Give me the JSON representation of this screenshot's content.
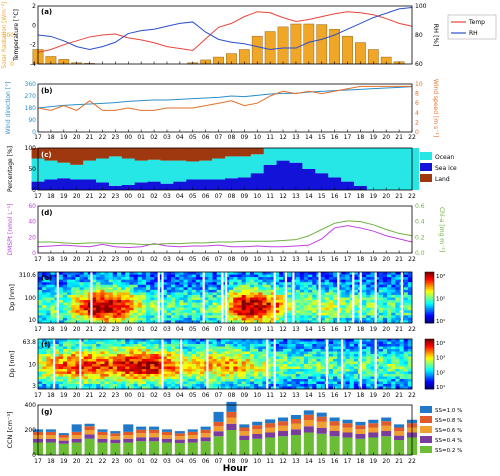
{
  "figure": {
    "x_axis_label": "Hour",
    "hour_ticks": [
      "17",
      "18",
      "19",
      "20",
      "21",
      "22",
      "23",
      "00",
      "01",
      "02",
      "03",
      "04",
      "05",
      "06",
      "07",
      "08",
      "09",
      "10",
      "11",
      "12",
      "13",
      "14",
      "15",
      "16",
      "17",
      "18",
      "19",
      "20",
      "21",
      "22"
    ]
  },
  "colors": {
    "temp": "#e8443a",
    "rh": "#2b4fc8",
    "solar": "#f0a626",
    "wdir": "#2c8fc9",
    "wspd": "#e2702c",
    "ocean": "#26e6e6",
    "seaice": "#1212d8",
    "land": "#a0380f",
    "dmspi": "#c040e0",
    "chla": "#70b040",
    "ccn": [
      "#6bbd35",
      "#7a3d9e",
      "#f0a030",
      "#e05a2a",
      "#1f78c8"
    ]
  },
  "chart_data": [
    {
      "id": "a",
      "panel_label": "(a)",
      "type": "bar+line",
      "ylabel_left": "Temperature [°C]",
      "ylabel_outer": "Solar Radiation [Wm⁻²]",
      "ylabel_right": "RH [%]",
      "ylim_left": [
        -4,
        2
      ],
      "ylim_right": [
        60,
        100
      ],
      "yticks_left": [
        "-4",
        "-2",
        "0",
        "2"
      ],
      "yticks_right": [
        "60",
        "80",
        "100"
      ],
      "solar_ticks": [
        "0",
        "500"
      ],
      "legend": [
        "Temp",
        "RH"
      ],
      "solar_values": [
        250,
        130,
        80,
        20,
        10,
        0,
        0,
        0,
        0,
        0,
        0,
        0,
        20,
        70,
        120,
        180,
        250,
        480,
        560,
        640,
        690,
        690,
        680,
        600,
        480,
        370,
        250,
        120,
        40,
        0
      ],
      "temp_values": [
        -2.8,
        -2.5,
        -2.0,
        -1.6,
        -1.2,
        -1.0,
        -0.9,
        -1.3,
        -1.5,
        -1.8,
        -2.2,
        -2.4,
        -2.6,
        -1.4,
        -0.2,
        0.2,
        0.9,
        1.4,
        1.3,
        0.8,
        0.4,
        0.6,
        0.9,
        1.2,
        1.4,
        1.3,
        1.1,
        0.7,
        0.2,
        -0.1
      ],
      "rh_values": [
        80,
        79,
        76,
        72,
        70,
        72,
        75,
        81,
        83,
        84,
        86,
        88,
        89,
        82,
        77,
        75,
        74,
        72,
        70,
        71,
        71,
        75,
        77,
        80,
        84,
        88,
        92,
        95,
        98,
        99
      ]
    },
    {
      "id": "b",
      "panel_label": "(b)",
      "type": "line",
      "ylabel_left": "Wind direction [°]",
      "ylabel_right": "Wind speed [m s⁻¹]",
      "ylim_left": [
        0,
        360
      ],
      "ylim_right": [
        0,
        10
      ],
      "yticks_left": [
        "0",
        "90",
        "180",
        "270",
        "360"
      ],
      "yticks_right": [
        "0",
        "2",
        "4",
        "6",
        "8",
        "10"
      ],
      "wdir_values": [
        180,
        190,
        200,
        205,
        210,
        215,
        220,
        230,
        235,
        240,
        240,
        245,
        250,
        255,
        260,
        270,
        265,
        275,
        285,
        290,
        290,
        300,
        305,
        310,
        315,
        320,
        325,
        330,
        335,
        340
      ],
      "wspd_values": [
        5.0,
        4.5,
        5.5,
        4.5,
        6.5,
        4.5,
        4.5,
        5.0,
        4.5,
        4.5,
        5.0,
        5.0,
        5.0,
        5.5,
        6.0,
        6.5,
        5.5,
        6.0,
        7.5,
        8.5,
        8.0,
        8.5,
        8.0,
        8.5,
        9.0,
        9.5,
        9.5,
        9.5,
        9.5,
        9.5
      ]
    },
    {
      "id": "c",
      "panel_label": "(c)",
      "type": "area",
      "ylabel": "Percentage [%]",
      "ylim": [
        0,
        100
      ],
      "yticks": [
        "0",
        "50",
        "100"
      ],
      "legend": [
        "Ocean",
        "Sea ice",
        "Land"
      ],
      "seaice_values": [
        20,
        25,
        28,
        25,
        25,
        18,
        10,
        12,
        18,
        20,
        15,
        20,
        25,
        25,
        25,
        28,
        30,
        40,
        60,
        70,
        65,
        50,
        40,
        30,
        20,
        10,
        0,
        0,
        0,
        0
      ],
      "land_values": [
        25,
        30,
        35,
        40,
        30,
        25,
        20,
        25,
        30,
        28,
        30,
        30,
        32,
        30,
        25,
        20,
        20,
        15,
        0,
        0,
        0,
        0,
        0,
        0,
        0,
        0,
        0,
        0,
        0,
        0
      ]
    },
    {
      "id": "d",
      "panel_label": "(d)",
      "type": "line",
      "ylabel_left": "DMSPt [nmol L⁻¹]",
      "ylabel_right": "Chl-a [mg m⁻³]",
      "ylim_left": [
        0,
        60
      ],
      "ylim_right": [
        0,
        0.6
      ],
      "yticks_left": [
        "0",
        "20",
        "40",
        "60"
      ],
      "yticks_right": [
        "0.0",
        "0.2",
        "0.4",
        "0.6"
      ],
      "dmspi_values": [
        8,
        9,
        10,
        9,
        8,
        11,
        8,
        7,
        8,
        12,
        9,
        8,
        9,
        9,
        10,
        8,
        8,
        9,
        8,
        8,
        9,
        10,
        18,
        32,
        35,
        32,
        28,
        22,
        18,
        14
      ],
      "chla_values": [
        0.14,
        0.14,
        0.13,
        0.12,
        0.13,
        0.13,
        0.12,
        0.12,
        0.11,
        0.11,
        0.12,
        0.12,
        0.13,
        0.13,
        0.14,
        0.14,
        0.15,
        0.15,
        0.15,
        0.16,
        0.17,
        0.22,
        0.3,
        0.38,
        0.41,
        0.4,
        0.36,
        0.3,
        0.25,
        0.22
      ]
    },
    {
      "id": "e",
      "panel_label": "(e)",
      "type": "heatmap",
      "ylabel": "Dp [nm]",
      "ytop_label": "310.6",
      "yticks": [
        "10",
        "100"
      ],
      "cbar_ticks": [
        "10³",
        "10²",
        "10¹"
      ]
    },
    {
      "id": "f",
      "panel_label": "(f)",
      "type": "heatmap",
      "ylabel": "Dp [nm]",
      "ytop_label": "63.8",
      "yticks": [
        "3",
        "10"
      ],
      "cbar_ticks": [
        "10⁴",
        "10³",
        "10²",
        "10¹"
      ]
    },
    {
      "id": "g",
      "panel_label": "(g)",
      "type": "bar",
      "ylabel": "CCN [cm⁻³]",
      "ylim": [
        0,
        400
      ],
      "yticks": [
        "0",
        "200",
        "400"
      ],
      "legend": [
        "SS=1.0 %",
        "SS=0.8 %",
        "SS=0.6 %",
        "SS=0.4 %",
        "SS=0.2 %"
      ],
      "series": [
        {
          "name": "SS=0.2 %",
          "values": [
            100,
            100,
            90,
            100,
            130,
            100,
            95,
            100,
            110,
            110,
            100,
            95,
            100,
            110,
            150,
            200,
            120,
            130,
            140,
            150,
            160,
            180,
            170,
            150,
            140,
            130,
            140,
            150,
            120,
            140
          ]
        },
        {
          "name": "SS=0.4 %",
          "values": [
            30,
            30,
            25,
            30,
            35,
            30,
            28,
            30,
            32,
            32,
            30,
            28,
            30,
            32,
            40,
            50,
            35,
            38,
            40,
            42,
            45,
            50,
            48,
            42,
            40,
            38,
            40,
            42,
            35,
            40
          ]
        },
        {
          "name": "SS=0.6 %",
          "values": [
            30,
            30,
            25,
            30,
            35,
            30,
            28,
            30,
            32,
            32,
            30,
            28,
            30,
            32,
            40,
            50,
            35,
            38,
            40,
            42,
            45,
            50,
            48,
            42,
            40,
            38,
            40,
            42,
            35,
            40
          ]
        },
        {
          "name": "SS=0.8 %",
          "values": [
            25,
            25,
            20,
            25,
            30,
            25,
            22,
            25,
            28,
            28,
            25,
            22,
            25,
            28,
            35,
            45,
            30,
            32,
            35,
            36,
            38,
            42,
            40,
            36,
            34,
            32,
            34,
            36,
            30,
            34
          ]
        },
        {
          "name": "SS=1.0 %",
          "values": [
            20,
            20,
            15,
            60,
            20,
            20,
            18,
            60,
            25,
            25,
            20,
            18,
            20,
            25,
            80,
            80,
            25,
            28,
            30,
            30,
            32,
            35,
            33,
            30,
            28,
            27,
            28,
            30,
            25,
            28
          ]
        }
      ]
    }
  ]
}
